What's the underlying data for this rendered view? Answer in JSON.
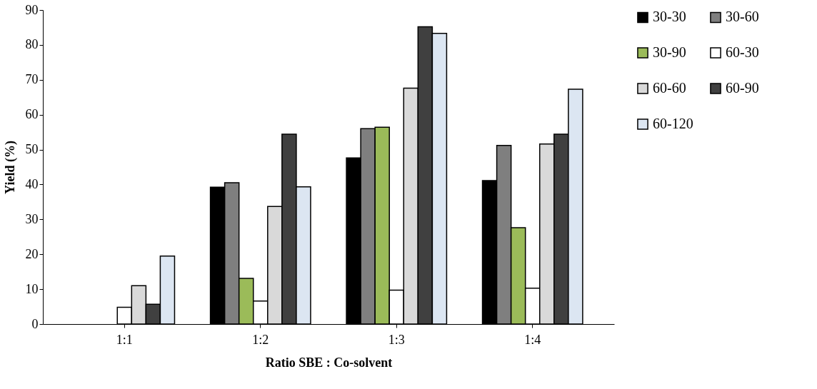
{
  "chart_data": {
    "type": "bar",
    "xlabel": "Ratio SBE : Co-solvent",
    "ylabel": "Yield (%)",
    "categories": [
      "1:1",
      "1:2",
      "1:3",
      "1:4"
    ],
    "series": [
      {
        "name": "30-30",
        "color": "#000000",
        "values": [
          null,
          39.2,
          47.6,
          41.1
        ]
      },
      {
        "name": "30-60",
        "color": "#7f7f7f",
        "values": [
          null,
          40.5,
          56.0,
          51.2
        ]
      },
      {
        "name": "30-90",
        "color": "#9bbb59",
        "values": [
          null,
          13.1,
          56.4,
          27.6
        ]
      },
      {
        "name": "60-30",
        "color": "#ffffff",
        "values": [
          4.8,
          6.6,
          9.7,
          10.3
        ]
      },
      {
        "name": "60-60",
        "color": "#d9d9d9",
        "values": [
          11.0,
          33.7,
          67.6,
          51.6
        ]
      },
      {
        "name": "60-90",
        "color": "#404040",
        "values": [
          5.7,
          54.4,
          85.2,
          54.4
        ]
      },
      {
        "name": "60-120",
        "color": "#dce6f2",
        "values": [
          19.5,
          39.3,
          83.3,
          67.3
        ]
      }
    ],
    "ylim": [
      0,
      90
    ],
    "yticks": [
      0,
      10,
      20,
      30,
      40,
      50,
      60,
      70,
      80,
      90
    ],
    "grid": false,
    "legend": "right"
  }
}
